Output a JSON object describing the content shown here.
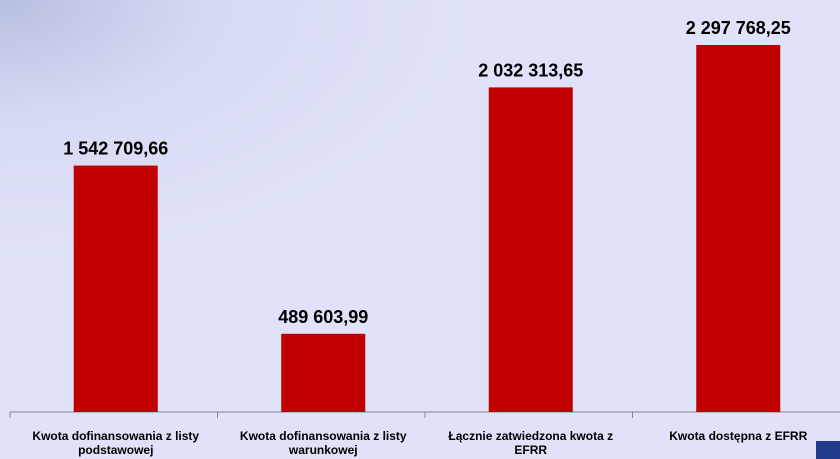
{
  "chart_data": {
    "type": "bar",
    "categories": [
      "Kwota dofinansowania z listy podstawowej",
      "Kwota dofinansowania z listy warunkowej",
      "Łącznie zatwiedzona kwota z EFRR",
      "Kwota dostępna z EFRR"
    ],
    "values": [
      1542709.66,
      489603.99,
      2032313.65,
      2297768.25
    ],
    "value_labels": [
      "1 542 709,66",
      "489 603,99",
      "2 032 313,65",
      "2 297 768,25"
    ],
    "color": "#c00000"
  }
}
